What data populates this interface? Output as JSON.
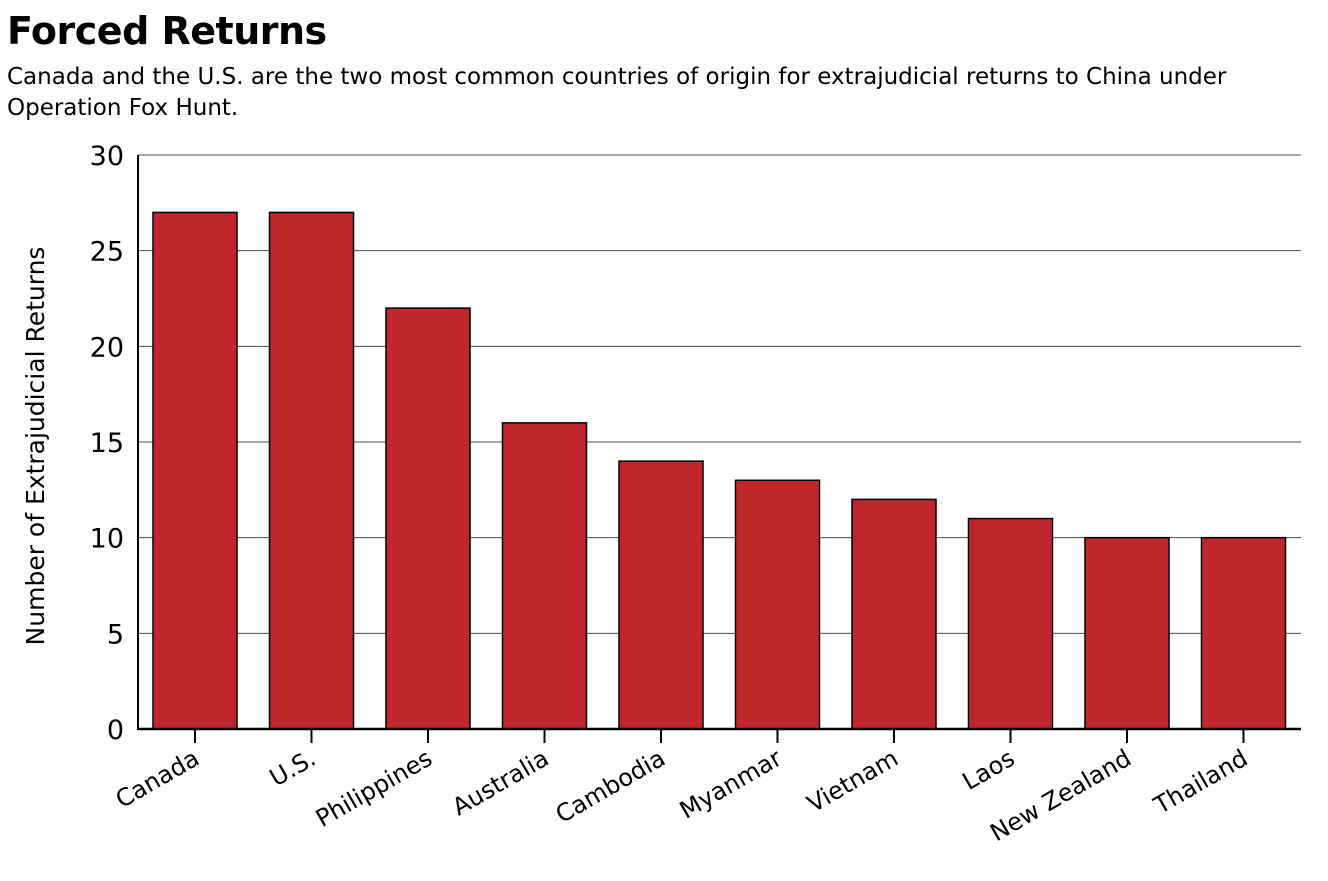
{
  "chart_data": {
    "type": "bar",
    "title": "Forced Returns",
    "subtitle": "Canada and the U.S. are the two most common countries of origin for extrajudicial returns to China under Operation Fox Hunt.",
    "xlabel": "",
    "ylabel": "Number of Extrajudicial Returns",
    "categories": [
      "Canada",
      "U.S.",
      "Philippines",
      "Australia",
      "Cambodia",
      "Myanmar",
      "Vietnam",
      "Laos",
      "New Zealand",
      "Thailand"
    ],
    "values": [
      27,
      27,
      22,
      16,
      14,
      13,
      12,
      11,
      10,
      10
    ],
    "ylim": [
      0,
      30
    ],
    "yticks": [
      0,
      5,
      10,
      15,
      20,
      25,
      30
    ],
    "grid": true,
    "legend": "none",
    "bar_color": "#c0272d",
    "bar_edge_color": "#000000"
  }
}
